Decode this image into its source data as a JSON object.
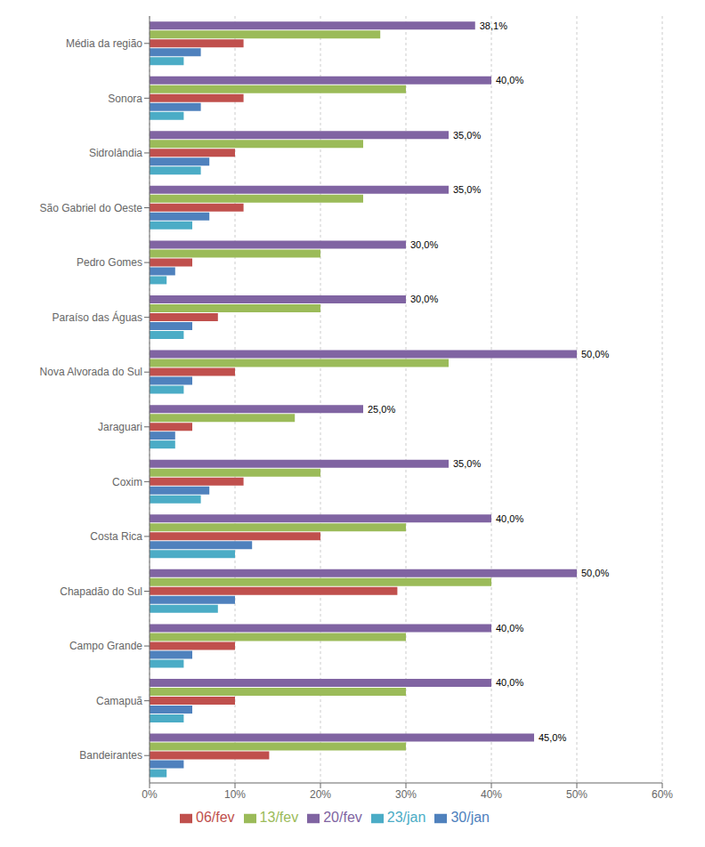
{
  "chart_data": {
    "type": "bar",
    "orientation": "horizontal",
    "categories": [
      "Bandeirantes",
      "Camapuã",
      "Campo Grande",
      "Chapadão do Sul",
      "Costa Rica",
      "Coxim",
      "Jaraguari",
      "Nova Alvorada do Sul",
      "Paraíso das Águas",
      "Pedro Gomes",
      "São Gabriel do Oeste",
      "Sidrolândia",
      "Sonora",
      "Média da região"
    ],
    "series": [
      {
        "name": "20/fev",
        "color": "#8064A2",
        "values": [
          45.0,
          40.0,
          40.0,
          50.0,
          40.0,
          35.0,
          25.0,
          50.0,
          30.0,
          30.0,
          35.0,
          35.0,
          40.0,
          38.1
        ],
        "value_labels": [
          "45,0%",
          "40,0%",
          "40,0%",
          "50,0%",
          "40,0%",
          "35,0%",
          "25,0%",
          "50,0%",
          "30,0%",
          "30,0%",
          "35,0%",
          "35,0%",
          "40,0%",
          "38,1%"
        ]
      },
      {
        "name": "13/fev",
        "color": "#9BBB59",
        "values": [
          30.0,
          30.0,
          30.0,
          40.0,
          30.0,
          20.0,
          17.0,
          35.0,
          20.0,
          20.0,
          25.0,
          25.0,
          30.0,
          27.0
        ]
      },
      {
        "name": "06/fev",
        "color": "#C0504D",
        "values": [
          14.0,
          10.0,
          10.0,
          29.0,
          20.0,
          11.0,
          5.0,
          10.0,
          8.0,
          5.0,
          11.0,
          10.0,
          11.0,
          11.0
        ]
      },
      {
        "name": "30/jan",
        "color": "#4F81BD",
        "values": [
          4.0,
          5.0,
          5.0,
          10.0,
          12.0,
          7.0,
          3.0,
          5.0,
          5.0,
          3.0,
          7.0,
          7.0,
          6.0,
          6.0
        ]
      },
      {
        "name": "23/jan",
        "color": "#4BACC6",
        "values": [
          2.0,
          4.0,
          4.0,
          8.0,
          10.0,
          6.0,
          3.0,
          4.0,
          4.0,
          2.0,
          5.0,
          6.0,
          4.0,
          4.0
        ]
      }
    ],
    "xlim": [
      0,
      60
    ],
    "xticks": [
      {
        "value": 0,
        "label": "0%"
      },
      {
        "value": 10,
        "label": "10%"
      },
      {
        "value": 20,
        "label": "20%"
      },
      {
        "value": 30,
        "label": "30%"
      },
      {
        "value": 40,
        "label": "40%"
      },
      {
        "value": 50,
        "label": "50%"
      },
      {
        "value": 60,
        "label": "60%"
      }
    ],
    "grid": true,
    "legend": "bottom"
  }
}
